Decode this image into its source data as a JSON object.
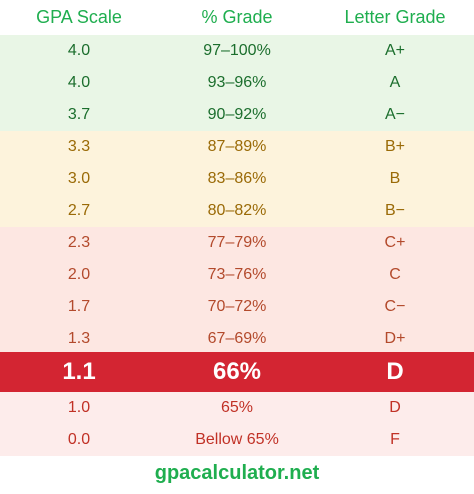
{
  "headers": [
    "GPA Scale",
    "% Grade",
    "Letter Grade"
  ],
  "rows": [
    {
      "gpa": "4.0",
      "percent": "97–100%",
      "letter": "A+"
    },
    {
      "gpa": "4.0",
      "percent": "93–96%",
      "letter": "A"
    },
    {
      "gpa": "3.7",
      "percent": "90–92%",
      "letter": "A−"
    },
    {
      "gpa": "3.3",
      "percent": "87–89%",
      "letter": "B+"
    },
    {
      "gpa": "3.0",
      "percent": "83–86%",
      "letter": "B"
    },
    {
      "gpa": "2.7",
      "percent": "80–82%",
      "letter": "B−"
    },
    {
      "gpa": "2.3",
      "percent": "77–79%",
      "letter": "C+"
    },
    {
      "gpa": "2.0",
      "percent": "73–76%",
      "letter": "C"
    },
    {
      "gpa": "1.7",
      "percent": "70–72%",
      "letter": "C−"
    },
    {
      "gpa": "1.3",
      "percent": "67–69%",
      "letter": "D+"
    },
    {
      "gpa": "1.1",
      "percent": "66%",
      "letter": "D"
    },
    {
      "gpa": "1.0",
      "percent": "65%",
      "letter": "D"
    },
    {
      "gpa": "0.0",
      "percent": "Bellow 65%",
      "letter": "F"
    }
  ],
  "footer": "gpacalculator.net",
  "colors": {
    "accent": "#1fae4f",
    "a_band": "#e9f6e6",
    "b_band": "#fdf3dc",
    "c_band": "#fde7e2",
    "highlight": "#d32532"
  }
}
